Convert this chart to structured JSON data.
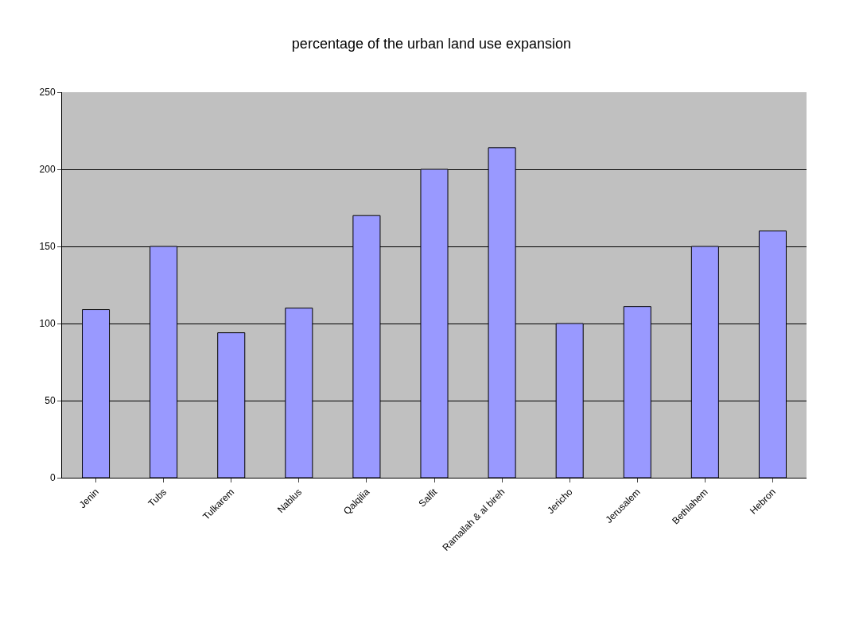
{
  "chart_data": {
    "type": "bar",
    "title": "percentage of the urban land use expansion",
    "categories": [
      "Jenin",
      "Tubs",
      "Tulkarem",
      "Nablus",
      "Qalqilia",
      "Salfit",
      "Ramallah & al bireh",
      "Jericho",
      "Jerusalem",
      "Bethlahem",
      "Hebron"
    ],
    "values": [
      109,
      150,
      94,
      110,
      170,
      200,
      214,
      100,
      111,
      150,
      160
    ],
    "color": "#9999ff",
    "ylim": [
      0,
      250
    ],
    "yticks": [
      0,
      50,
      100,
      150,
      200,
      250
    ],
    "grid": "y"
  }
}
